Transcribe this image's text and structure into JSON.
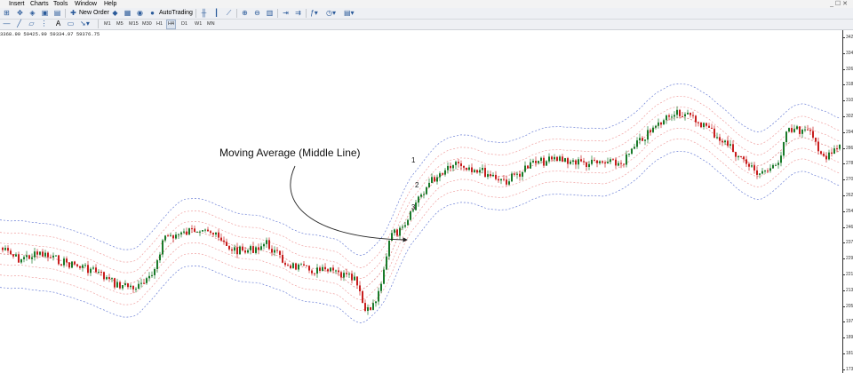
{
  "menu": {
    "items": [
      "Insert",
      "Charts",
      "Tools",
      "Window",
      "Help"
    ],
    "mdi_controls": "_ ☐ ✕"
  },
  "toolbar": {
    "new_order_label": "New Order",
    "autotrading_label": "AutoTrading"
  },
  "timeframes": {
    "items": [
      "M1",
      "M5",
      "M15",
      "M30",
      "H1",
      "H4",
      "D1",
      "W1",
      "MN"
    ],
    "active": "H4"
  },
  "ohlc_readout": "3368.90 59425.99 59334.97 59376.75",
  "price_axis": {
    "ticks": [
      "342",
      "334",
      "326",
      "318",
      "310",
      "302",
      "294",
      "286",
      "278",
      "270",
      "262",
      "254",
      "246",
      "237",
      "229",
      "221",
      "213",
      "205",
      "197",
      "189",
      "181",
      "173"
    ]
  },
  "annotation": {
    "text": "Moving Average (Middle Line)"
  },
  "band_labels": [
    "1",
    "2",
    "3"
  ],
  "colors": {
    "bull": "#1a7a2a",
    "bear": "#c81e1e",
    "ma_line": "#e08a8a",
    "inner_band": "#f0a0a0",
    "outer_band": "#6b7fd6"
  }
}
